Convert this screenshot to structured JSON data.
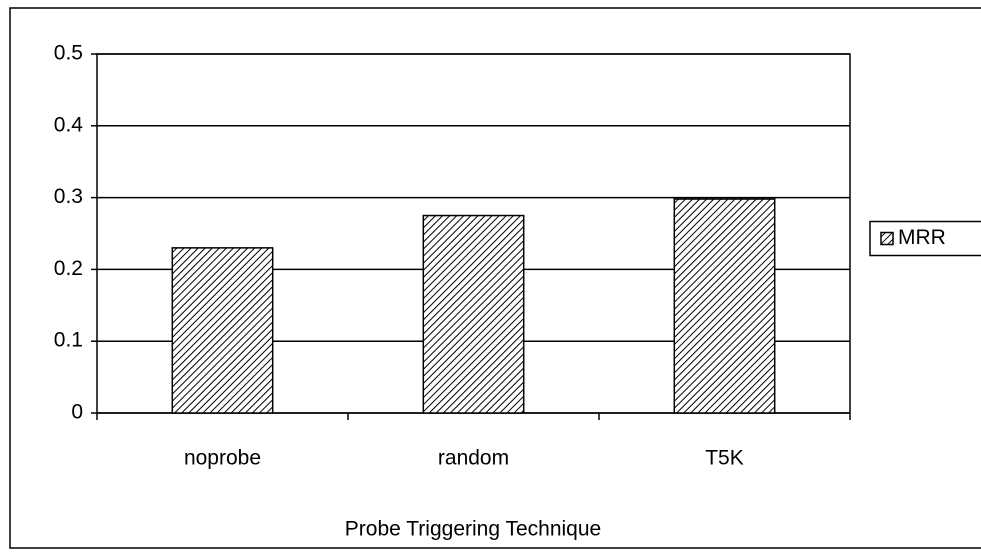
{
  "chart_data": {
    "type": "bar",
    "xlabel": "Probe Triggering Technique",
    "categories": [
      "noprobe",
      "random",
      "T5K"
    ],
    "series": [
      {
        "name": "MRR",
        "color": "#000000",
        "values": [
          0.23,
          0.275,
          0.298
        ]
      }
    ],
    "ylim": [
      0,
      0.5
    ],
    "yticks": [
      0,
      0.1,
      0.2,
      0.3,
      0.4,
      0.5
    ],
    "grid": true,
    "legend": "right"
  }
}
